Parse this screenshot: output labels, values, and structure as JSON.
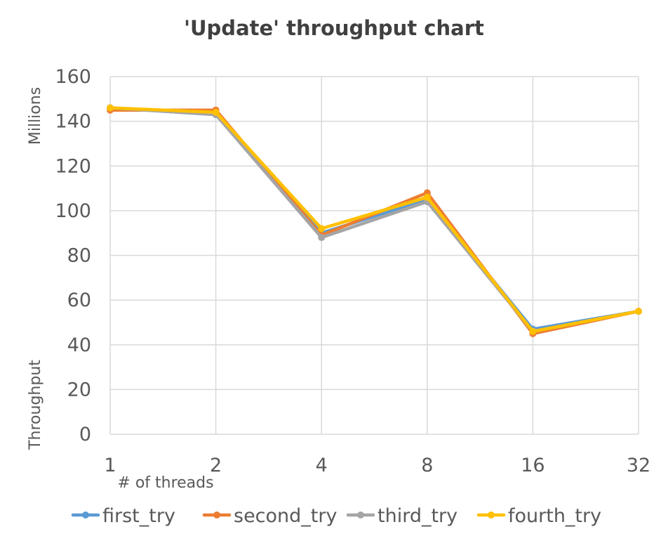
{
  "chart_data": {
    "type": "line",
    "title": "'Update' throughput chart",
    "xlabel": "# of threads",
    "ylabel": "Throughput",
    "y_units": "Millions",
    "categories": [
      "1",
      "2",
      "4",
      "8",
      "16",
      "32"
    ],
    "ylim": [
      0,
      160
    ],
    "yticks": [
      "0",
      "20",
      "40",
      "60",
      "80",
      "100",
      "120",
      "140",
      "160"
    ],
    "grid": true,
    "legend_position": "bottom",
    "series": [
      {
        "name": "first_try",
        "color": "#5b9bd5",
        "values": [
          146,
          143,
          90,
          105,
          47,
          55
        ]
      },
      {
        "name": "second_try",
        "color": "#ed7d31",
        "values": [
          145,
          145,
          89,
          108,
          45,
          55
        ]
      },
      {
        "name": "third_try",
        "color": "#a5a5a5",
        "values": [
          146,
          143,
          88,
          104,
          46,
          55
        ]
      },
      {
        "name": "fourth_try",
        "color": "#ffc000",
        "values": [
          146,
          144,
          92,
          106,
          46,
          55
        ]
      }
    ]
  }
}
